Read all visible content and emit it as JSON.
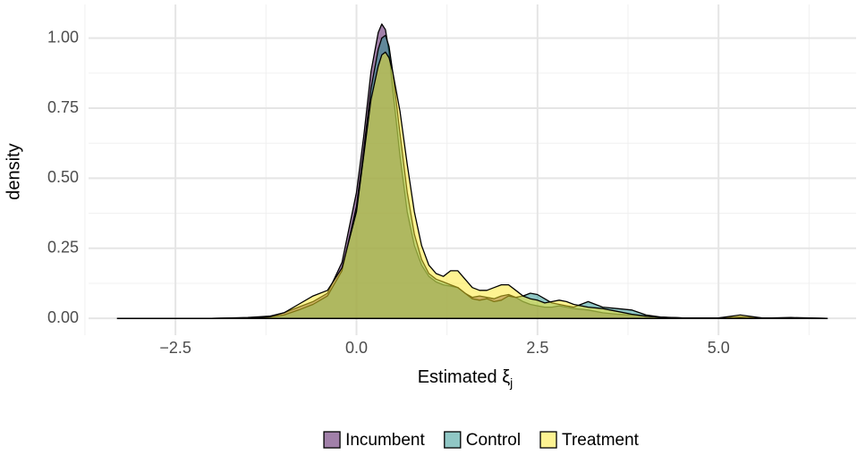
{
  "chart_data": {
    "type": "density",
    "xlabel": "Estimated ξ",
    "xlabel_subscript": "j",
    "ylabel": "density",
    "x": [
      -3.3,
      -2.0,
      -1.5,
      -1.2,
      -1.0,
      -0.8,
      -0.6,
      -0.4,
      -0.2,
      0.0,
      0.1,
      0.2,
      0.3,
      0.35,
      0.4,
      0.45,
      0.5,
      0.6,
      0.7,
      0.8,
      0.9,
      1.0,
      1.1,
      1.2,
      1.3,
      1.4,
      1.5,
      1.6,
      1.7,
      1.8,
      1.9,
      2.0,
      2.1,
      2.2,
      2.3,
      2.4,
      2.5,
      2.6,
      2.7,
      2.8,
      2.9,
      3.0,
      3.2,
      3.4,
      3.6,
      3.8,
      4.0,
      4.2,
      4.5,
      5.0,
      5.3,
      5.6,
      6.0,
      6.5
    ],
    "series": [
      {
        "name": "Incumbent",
        "color": "#440154",
        "values": [
          0,
          0,
          0.003,
          0.008,
          0.02,
          0.04,
          0.06,
          0.09,
          0.2,
          0.45,
          0.65,
          0.88,
          1.02,
          1.05,
          1.03,
          0.95,
          0.82,
          0.58,
          0.38,
          0.26,
          0.19,
          0.15,
          0.13,
          0.12,
          0.115,
          0.11,
          0.09,
          0.075,
          0.08,
          0.075,
          0.07,
          0.08,
          0.085,
          0.075,
          0.06,
          0.05,
          0.045,
          0.04,
          0.04,
          0.045,
          0.04,
          0.035,
          0.03,
          0.02,
          0.015,
          0.012,
          0.008,
          0.004,
          0.002,
          0.001,
          0.003,
          0.001,
          0.003,
          0
        ]
      },
      {
        "name": "Control",
        "color": "#21908C",
        "values": [
          0,
          0,
          0.002,
          0.005,
          0.012,
          0.03,
          0.05,
          0.08,
          0.17,
          0.4,
          0.6,
          0.82,
          0.96,
          1.0,
          1.01,
          0.97,
          0.88,
          0.66,
          0.45,
          0.3,
          0.21,
          0.16,
          0.14,
          0.13,
          0.12,
          0.11,
          0.09,
          0.07,
          0.065,
          0.07,
          0.06,
          0.065,
          0.08,
          0.075,
          0.08,
          0.09,
          0.085,
          0.07,
          0.055,
          0.05,
          0.045,
          0.04,
          0.06,
          0.04,
          0.035,
          0.03,
          0.012,
          0.005,
          0.002,
          0.002,
          0.005,
          0.002,
          0.002,
          0
        ]
      },
      {
        "name": "Treatment",
        "color": "#FDE725",
        "values": [
          0,
          0,
          0.002,
          0.006,
          0.02,
          0.05,
          0.08,
          0.1,
          0.18,
          0.38,
          0.58,
          0.78,
          0.9,
          0.94,
          0.95,
          0.93,
          0.88,
          0.74,
          0.55,
          0.38,
          0.26,
          0.19,
          0.16,
          0.15,
          0.17,
          0.17,
          0.14,
          0.11,
          0.1,
          0.1,
          0.11,
          0.12,
          0.12,
          0.1,
          0.08,
          0.07,
          0.065,
          0.055,
          0.06,
          0.065,
          0.06,
          0.05,
          0.04,
          0.035,
          0.025,
          0.015,
          0.008,
          0.004,
          0.002,
          0.002,
          0.012,
          0.002,
          0.001,
          0
        ]
      }
    ],
    "alpha": 0.5,
    "xlim": [
      -3.7,
      6.9
    ],
    "ylim": [
      -0.06,
      1.12
    ],
    "xticks": [
      {
        "value": -2.5,
        "label": "−2.5"
      },
      {
        "value": 0,
        "label": "0.0"
      },
      2.5,
      {
        "value": 5,
        "label": "5.0"
      }
    ],
    "yticks": [
      {
        "value": 0,
        "label": "0.00"
      },
      {
        "value": 0.25,
        "label": "0.25"
      },
      {
        "value": 0.5,
        "label": "0.50"
      },
      {
        "value": 0.75,
        "label": "0.75"
      },
      {
        "value": 1,
        "label": "1.00"
      }
    ],
    "x_minor_ticks": [
      -3.75,
      -1.25,
      1.25,
      3.75,
      6.25
    ],
    "y_minor_ticks": [
      0.125,
      0.375,
      0.625,
      0.875
    ],
    "grid": true,
    "legend": "bottom"
  }
}
